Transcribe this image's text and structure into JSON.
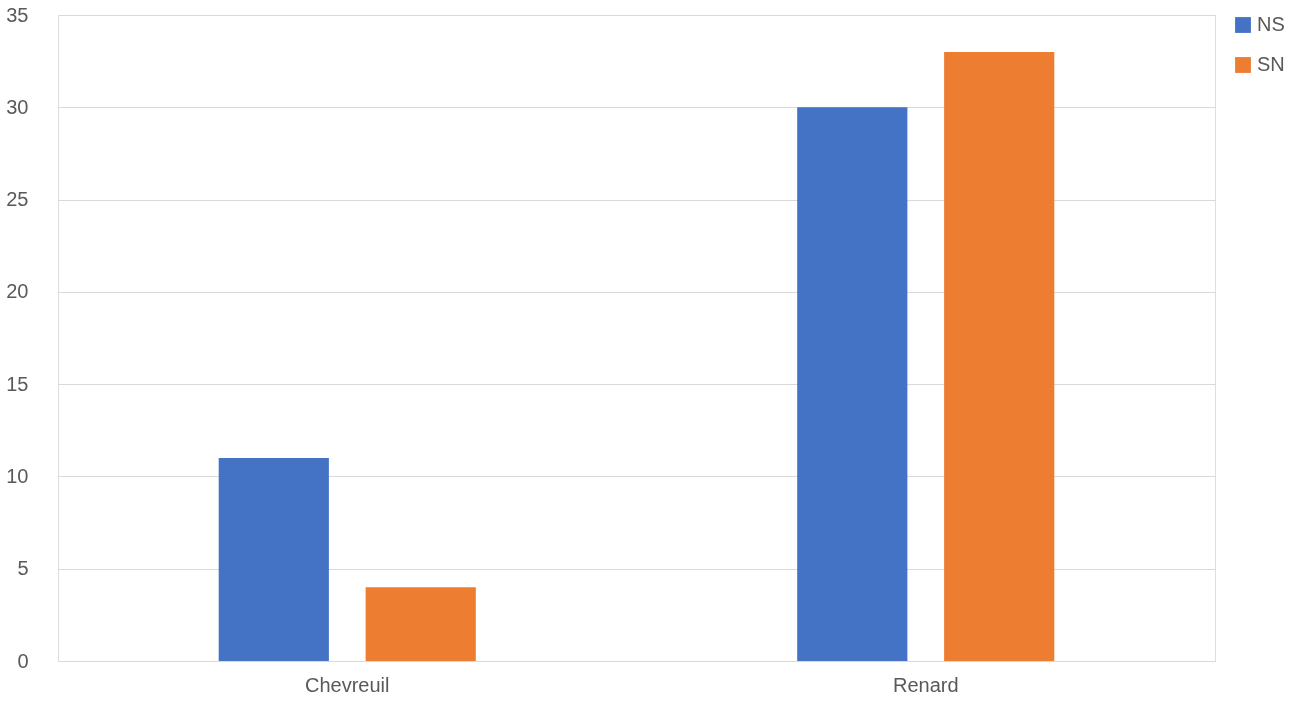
{
  "chart_data": {
    "type": "bar",
    "categories": [
      "Chevreuil",
      "Renard"
    ],
    "series": [
      {
        "name": "NS",
        "color": "#4472c4",
        "values": [
          11,
          30
        ]
      },
      {
        "name": "SN",
        "color": "#ed7d31",
        "values": [
          4,
          33
        ]
      }
    ],
    "ylim": [
      0,
      35
    ],
    "yticks": [
      0,
      5,
      10,
      15,
      20,
      25,
      30,
      35
    ],
    "grid": "y",
    "legend": "right"
  }
}
